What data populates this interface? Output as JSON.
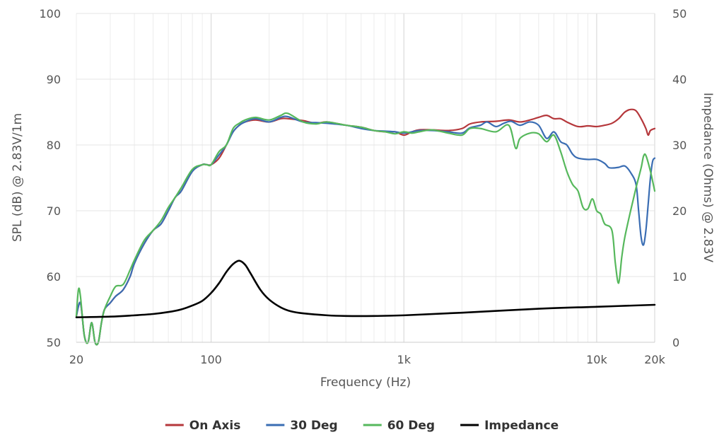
{
  "chart_data": {
    "type": "line",
    "xlabel": "Frequency (Hz)",
    "ylabel_left": "SPL (dB) @ 2.83V/1m",
    "ylabel_right": "Impedance (Ohms) @ 2.83V",
    "x_scale": "log",
    "xlim": [
      20,
      20000
    ],
    "ylim_left": [
      50,
      100
    ],
    "ylim_right": [
      0,
      50
    ],
    "x_ticks": [
      {
        "value": 20,
        "label": "20"
      },
      {
        "value": 100,
        "label": "100"
      },
      {
        "value": 1000,
        "label": "1k"
      },
      {
        "value": 10000,
        "label": "10k"
      },
      {
        "value": 20000,
        "label": "20k"
      }
    ],
    "y_ticks_left": [
      "50",
      "60",
      "70",
      "80",
      "90",
      "100"
    ],
    "y_ticks_right": [
      "0",
      "10",
      "20",
      "30",
      "40",
      "50"
    ],
    "grid": true,
    "legend_position": "bottom",
    "series": [
      {
        "name": "On Axis",
        "color": "#b5373b",
        "axis": "left",
        "points": [
          [
            20,
            54
          ],
          [
            21,
            56
          ],
          [
            22,
            51
          ],
          [
            23,
            50
          ],
          [
            24,
            53
          ],
          [
            25,
            50
          ],
          [
            26,
            50
          ],
          [
            27,
            53
          ],
          [
            28,
            55
          ],
          [
            30,
            56
          ],
          [
            32,
            57
          ],
          [
            35,
            58
          ],
          [
            38,
            60
          ],
          [
            40,
            62
          ],
          [
            45,
            65
          ],
          [
            50,
            67
          ],
          [
            55,
            68
          ],
          [
            60,
            70
          ],
          [
            65,
            72
          ],
          [
            70,
            73
          ],
          [
            80,
            76
          ],
          [
            90,
            77
          ],
          [
            95,
            77
          ],
          [
            100,
            77
          ],
          [
            110,
            78
          ],
          [
            120,
            80
          ],
          [
            130,
            82
          ],
          [
            140,
            83
          ],
          [
            150,
            83.5
          ],
          [
            170,
            83.8
          ],
          [
            200,
            83.5
          ],
          [
            230,
            84
          ],
          [
            250,
            84
          ],
          [
            300,
            83.7
          ],
          [
            350,
            83.3
          ],
          [
            400,
            83.5
          ],
          [
            500,
            83
          ],
          [
            600,
            82.7
          ],
          [
            700,
            82.2
          ],
          [
            800,
            82
          ],
          [
            900,
            82
          ],
          [
            1000,
            81.5
          ],
          [
            1100,
            82
          ],
          [
            1200,
            82.3
          ],
          [
            1400,
            82.3
          ],
          [
            1700,
            82.2
          ],
          [
            2000,
            82.5
          ],
          [
            2200,
            83.2
          ],
          [
            2500,
            83.5
          ],
          [
            3000,
            83.6
          ],
          [
            3500,
            83.8
          ],
          [
            4000,
            83.5
          ],
          [
            4500,
            83.8
          ],
          [
            5000,
            84.2
          ],
          [
            5500,
            84.5
          ],
          [
            6000,
            84
          ],
          [
            6500,
            84
          ],
          [
            7000,
            83.5
          ],
          [
            8000,
            82.8
          ],
          [
            9000,
            82.9
          ],
          [
            10000,
            82.8
          ],
          [
            11000,
            83
          ],
          [
            12000,
            83.3
          ],
          [
            13000,
            84
          ],
          [
            14000,
            85
          ],
          [
            15000,
            85.4
          ],
          [
            16000,
            85.2
          ],
          [
            17000,
            84
          ],
          [
            18000,
            82.5
          ],
          [
            18500,
            81.5
          ],
          [
            19000,
            82.2
          ],
          [
            20000,
            82.5
          ]
        ]
      },
      {
        "name": "30 Deg",
        "color": "#3a6db3",
        "axis": "left",
        "points": [
          [
            20,
            54
          ],
          [
            21,
            56
          ],
          [
            22,
            51
          ],
          [
            23,
            50
          ],
          [
            24,
            53
          ],
          [
            25,
            50
          ],
          [
            26,
            50
          ],
          [
            27,
            53
          ],
          [
            28,
            55
          ],
          [
            30,
            56
          ],
          [
            32,
            57
          ],
          [
            35,
            58
          ],
          [
            38,
            60
          ],
          [
            40,
            62
          ],
          [
            45,
            65
          ],
          [
            50,
            67
          ],
          [
            55,
            68
          ],
          [
            60,
            70
          ],
          [
            65,
            72
          ],
          [
            70,
            73
          ],
          [
            80,
            76
          ],
          [
            90,
            77
          ],
          [
            95,
            77
          ],
          [
            100,
            77
          ],
          [
            110,
            78.5
          ],
          [
            120,
            80
          ],
          [
            130,
            82
          ],
          [
            140,
            83
          ],
          [
            150,
            83.5
          ],
          [
            170,
            84
          ],
          [
            200,
            83.5
          ],
          [
            230,
            84.2
          ],
          [
            250,
            84.3
          ],
          [
            300,
            83.5
          ],
          [
            350,
            83.4
          ],
          [
            400,
            83.3
          ],
          [
            500,
            83
          ],
          [
            600,
            82.5
          ],
          [
            700,
            82.2
          ],
          [
            800,
            82.1
          ],
          [
            900,
            82
          ],
          [
            1000,
            81.8
          ],
          [
            1100,
            82
          ],
          [
            1200,
            82.2
          ],
          [
            1400,
            82.2
          ],
          [
            1700,
            82
          ],
          [
            2000,
            81.8
          ],
          [
            2200,
            82.6
          ],
          [
            2500,
            83
          ],
          [
            2700,
            83.5
          ],
          [
            3000,
            82.8
          ],
          [
            3300,
            83.3
          ],
          [
            3600,
            83.6
          ],
          [
            4000,
            83
          ],
          [
            4500,
            83.5
          ],
          [
            5000,
            83
          ],
          [
            5500,
            81
          ],
          [
            6000,
            82
          ],
          [
            6500,
            80.5
          ],
          [
            7000,
            80
          ],
          [
            7500,
            78.6
          ],
          [
            8000,
            78
          ],
          [
            9000,
            77.8
          ],
          [
            10000,
            77.8
          ],
          [
            11000,
            77.2
          ],
          [
            11500,
            76.6
          ],
          [
            12000,
            76.5
          ],
          [
            13000,
            76.6
          ],
          [
            14000,
            76.8
          ],
          [
            15000,
            75.8
          ],
          [
            16000,
            74
          ],
          [
            16500,
            70
          ],
          [
            17000,
            66
          ],
          [
            17500,
            64.8
          ],
          [
            18000,
            67
          ],
          [
            18500,
            71
          ],
          [
            19000,
            75
          ],
          [
            19500,
            77.5
          ],
          [
            20000,
            78
          ]
        ]
      },
      {
        "name": "60 Deg",
        "color": "#56b85c",
        "axis": "left",
        "points": [
          [
            20,
            54
          ],
          [
            20.5,
            58
          ],
          [
            21,
            57
          ],
          [
            22,
            51
          ],
          [
            23,
            50
          ],
          [
            24,
            53
          ],
          [
            25,
            50
          ],
          [
            26,
            50
          ],
          [
            27,
            53
          ],
          [
            28,
            55
          ],
          [
            30,
            57
          ],
          [
            32,
            58.5
          ],
          [
            35,
            58.8
          ],
          [
            38,
            61
          ],
          [
            40,
            62.5
          ],
          [
            45,
            65.5
          ],
          [
            50,
            67
          ],
          [
            55,
            68.5
          ],
          [
            60,
            70.5
          ],
          [
            65,
            72
          ],
          [
            70,
            73.5
          ],
          [
            80,
            76.3
          ],
          [
            90,
            77
          ],
          [
            95,
            77
          ],
          [
            100,
            77
          ],
          [
            110,
            79
          ],
          [
            120,
            80
          ],
          [
            130,
            82.5
          ],
          [
            140,
            83.3
          ],
          [
            150,
            83.8
          ],
          [
            170,
            84.2
          ],
          [
            200,
            83.8
          ],
          [
            230,
            84.5
          ],
          [
            250,
            84.8
          ],
          [
            300,
            83.5
          ],
          [
            350,
            83.2
          ],
          [
            400,
            83.5
          ],
          [
            500,
            83
          ],
          [
            600,
            82.7
          ],
          [
            700,
            82.2
          ],
          [
            800,
            82
          ],
          [
            900,
            81.7
          ],
          [
            1000,
            82
          ],
          [
            1100,
            81.8
          ],
          [
            1200,
            82
          ],
          [
            1400,
            82.3
          ],
          [
            1700,
            81.8
          ],
          [
            2000,
            81.5
          ],
          [
            2200,
            82.5
          ],
          [
            2500,
            82.5
          ],
          [
            3000,
            82
          ],
          [
            3500,
            83
          ],
          [
            3800,
            79.5
          ],
          [
            4000,
            81
          ],
          [
            4500,
            81.8
          ],
          [
            5000,
            81.7
          ],
          [
            5500,
            80.5
          ],
          [
            6000,
            81.5
          ],
          [
            6500,
            79
          ],
          [
            7000,
            76
          ],
          [
            7500,
            74
          ],
          [
            8000,
            73
          ],
          [
            8500,
            70.5
          ],
          [
            9000,
            70.3
          ],
          [
            9500,
            71.8
          ],
          [
            10000,
            70
          ],
          [
            10500,
            69.5
          ],
          [
            11000,
            68
          ],
          [
            12000,
            67
          ],
          [
            12500,
            62
          ],
          [
            13000,
            59
          ],
          [
            13500,
            63
          ],
          [
            14000,
            66
          ],
          [
            15000,
            70
          ],
          [
            16000,
            73.5
          ],
          [
            17000,
            76.5
          ],
          [
            17500,
            78.3
          ],
          [
            18000,
            78.4
          ],
          [
            19000,
            76
          ],
          [
            20000,
            73
          ]
        ]
      },
      {
        "name": "Impedance",
        "color": "#000000",
        "axis": "right",
        "points": [
          [
            20,
            3.8
          ],
          [
            30,
            3.9
          ],
          [
            40,
            4.1
          ],
          [
            50,
            4.3
          ],
          [
            60,
            4.6
          ],
          [
            70,
            5
          ],
          [
            80,
            5.6
          ],
          [
            90,
            6.3
          ],
          [
            100,
            7.5
          ],
          [
            110,
            9
          ],
          [
            120,
            10.7
          ],
          [
            130,
            11.9
          ],
          [
            140,
            12.4
          ],
          [
            150,
            11.8
          ],
          [
            160,
            10.5
          ],
          [
            180,
            8
          ],
          [
            200,
            6.5
          ],
          [
            230,
            5.3
          ],
          [
            260,
            4.7
          ],
          [
            300,
            4.4
          ],
          [
            400,
            4.1
          ],
          [
            500,
            4
          ],
          [
            700,
            4
          ],
          [
            1000,
            4.1
          ],
          [
            2000,
            4.5
          ],
          [
            5000,
            5.1
          ],
          [
            10000,
            5.4
          ],
          [
            20000,
            5.7
          ]
        ]
      }
    ]
  }
}
